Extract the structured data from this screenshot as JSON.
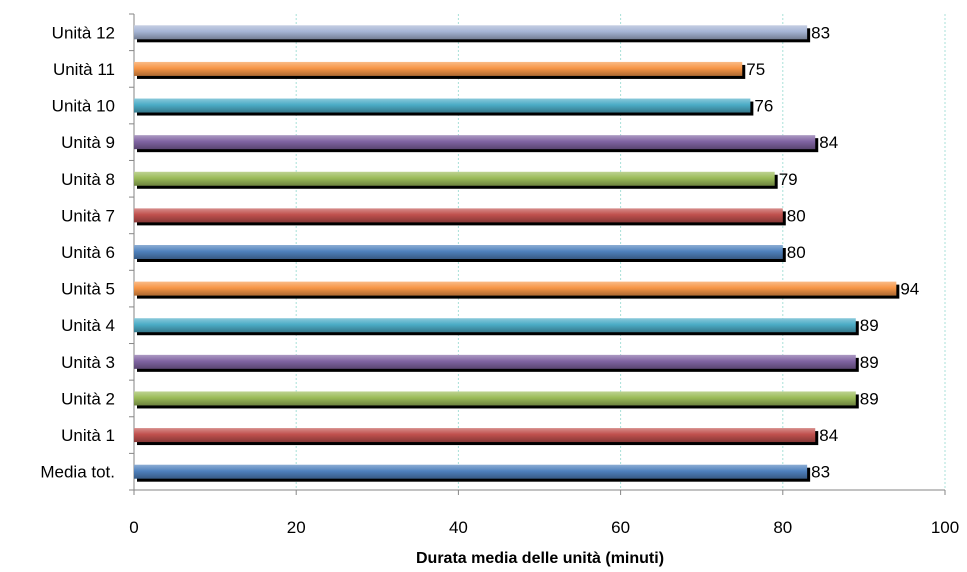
{
  "chart_data": {
    "type": "bar",
    "orientation": "horizontal",
    "categories": [
      "Media tot.",
      "Unità 1",
      "Unità 2",
      "Unità 3",
      "Unità 4",
      "Unità 5",
      "Unità 6",
      "Unità 7",
      "Unità 8",
      "Unità 9",
      "Unità 10",
      "Unità 11",
      "Unità 12"
    ],
    "values": [
      83,
      84,
      89,
      89,
      89,
      94,
      80,
      80,
      79,
      84,
      76,
      75,
      83
    ],
    "value_labels": [
      "83",
      "84",
      "89",
      "89",
      "89",
      "94",
      "80",
      "80",
      "79",
      "84",
      "76",
      "75",
      "83"
    ],
    "bar_colors": [
      "#4f81bd",
      "#c0504d",
      "#9bbb59",
      "#8064a2",
      "#4bacc6",
      "#f79646",
      "#4f81bd",
      "#c0504d",
      "#9bbb59",
      "#8064a2",
      "#4bacc6",
      "#f79646",
      "#a5b4d4"
    ],
    "xlabel": "Durata media delle unità (minuti)",
    "ylabel": "",
    "xlim": [
      0,
      100
    ],
    "xticks": [
      0,
      20,
      40,
      60,
      80,
      100
    ],
    "xtick_labels": [
      "0",
      "20",
      "40",
      "60",
      "80",
      "100"
    ],
    "grid": true,
    "gridline_color": "#a8e0d8"
  }
}
